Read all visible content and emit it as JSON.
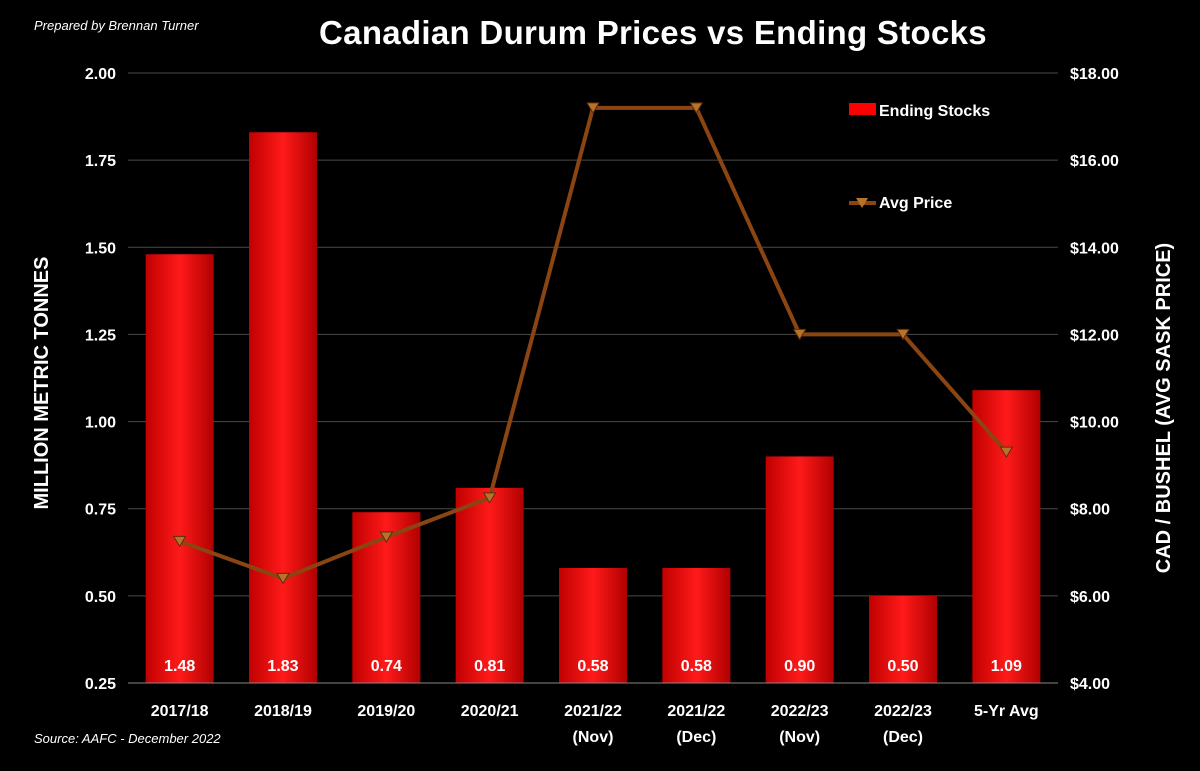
{
  "header": {
    "prepared_by": "Prepared by Brennan Turner",
    "source": "Source: AAFC -  December 2022"
  },
  "colors": {
    "background": "#000000",
    "bar": "#ff0000",
    "line": "#8b4513",
    "marker": "#b8732a",
    "text": "#ffffff",
    "grid": "#888888"
  },
  "chart_data": {
    "type": "bar",
    "title": "Canadian Durum Prices vs Ending Stocks",
    "categories": [
      [
        "2017/18"
      ],
      [
        "2018/19"
      ],
      [
        "2019/20"
      ],
      [
        "2020/21"
      ],
      [
        "2021/22",
        "(Nov)"
      ],
      [
        "2021/22",
        "(Dec)"
      ],
      [
        "2022/23",
        "(Nov)"
      ],
      [
        "2022/23",
        "(Dec)"
      ],
      [
        "5-Yr Avg"
      ]
    ],
    "ylabel": "MILLION METRIC TONNES",
    "y2label": "CAD / BUSHEL (AVG SASK PRICE)",
    "ylim": [
      0.25,
      2.0
    ],
    "y2lim": [
      4.0,
      18.0
    ],
    "yticks": [
      "0.25",
      "0.50",
      "0.75",
      "1.00",
      "1.25",
      "1.50",
      "1.75",
      "2.00"
    ],
    "y2ticks": [
      "$4.00",
      "$6.00",
      "$8.00",
      "$10.00",
      "$12.00",
      "$14.00",
      "$16.00",
      "$18.00"
    ],
    "grid": true,
    "legend_position": "top-right",
    "series": [
      {
        "name": "Ending Stocks",
        "type": "bar",
        "axis": "left",
        "values": [
          1.48,
          1.83,
          0.74,
          0.81,
          0.58,
          0.58,
          0.9,
          0.5,
          1.09
        ],
        "labels": [
          "1.48",
          "1.83",
          "0.74",
          "0.81",
          "0.58",
          "0.58",
          "0.90",
          "0.50",
          "1.09"
        ]
      },
      {
        "name": "Avg Price",
        "type": "line",
        "axis": "right",
        "values": [
          7.25,
          6.4,
          7.35,
          8.25,
          17.2,
          17.2,
          12.0,
          12.0,
          9.3
        ]
      }
    ]
  }
}
